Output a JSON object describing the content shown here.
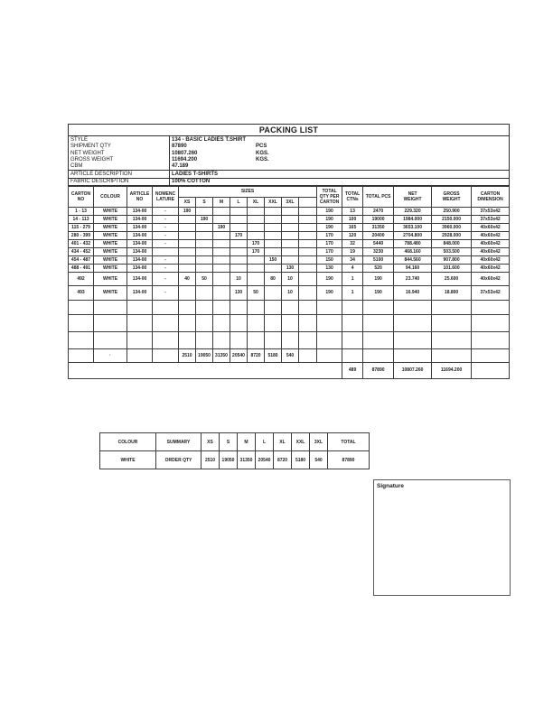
{
  "document": {
    "title": "PACKING LIST",
    "info_rows": [
      {
        "label": "STYLE",
        "value": "134 - BASIC LADIES T.SHIRT",
        "unit": ""
      },
      {
        "label": "SHIPMENT QTY",
        "value": "87890",
        "unit": "PCS"
      },
      {
        "label": "NET WEIGHT",
        "value": "10807.260",
        "unit": "KGS."
      },
      {
        "label": "GROSS WEIGHT",
        "value": "11694.200",
        "unit": "KGS."
      },
      {
        "label": "CBM",
        "value": "47.189",
        "unit": ""
      },
      {
        "label": "ARTICLE DESCRIPTION",
        "value": "LADIES T-SHIRTS",
        "unit": ""
      },
      {
        "label": "FABRIC DESCRIPTION",
        "value": "100% COTTON",
        "unit": ""
      }
    ]
  },
  "main_table": {
    "headers": {
      "carton_no": "CARTON\nNO",
      "colour": "COLOUR",
      "article_no": "ARTICLE\nNO",
      "nomenclature": "NOMENC\nLATURE",
      "sizes": "SIZES",
      "size_cols": [
        "XS",
        "S",
        "M",
        "L",
        "XL",
        "XXL",
        "3XL",
        ""
      ],
      "total_qty_per_carton": "TOTAL\nQTY PER\nCARTON",
      "total_ctns": "TOTAL\nCTNs",
      "total_pcs": "TOTAL PCS",
      "net_weight": "NET\nWEIGHT",
      "gross_weight": "GROSS\nWEIGHT",
      "carton_dimension": "CARTON\nDIMENSION"
    },
    "rows": [
      {
        "h": 9,
        "cells": [
          "1 - 13",
          "WHITE",
          "134-00",
          "-",
          "190",
          "",
          "",
          "",
          "",
          "",
          "",
          "",
          "190",
          "13",
          "2470",
          "229.320",
          "250.900",
          "37x53x42"
        ]
      },
      {
        "h": 9,
        "cells": [
          "14 - 113",
          "WHITE",
          "134-00",
          "-",
          "",
          "190",
          "",
          "",
          "",
          "",
          "",
          "",
          "190",
          "100",
          "19000",
          "1984.000",
          "2150.000",
          "37x53x42"
        ]
      },
      {
        "h": 9,
        "cells": [
          "115 - 279",
          "WHITE",
          "134-00",
          "-",
          "",
          "",
          "190",
          "",
          "",
          "",
          "",
          "",
          "190",
          "165",
          "31350",
          "3653.100",
          "3960.000",
          "40x60x42"
        ]
      },
      {
        "h": 9,
        "cells": [
          "280 - 399",
          "WHITE",
          "134-00",
          "-",
          "",
          "",
          "",
          "170",
          "",
          "",
          "",
          "",
          "170",
          "120",
          "20400",
          "2704.800",
          "2928.000",
          "40x60x42"
        ]
      },
      {
        "h": 9,
        "cells": [
          "401 - 432",
          "WHITE",
          "134-00",
          "-",
          "",
          "",
          "",
          "",
          "170",
          "",
          "",
          "",
          "170",
          "32",
          "5440",
          "788.480",
          "848.000",
          "40x60x42"
        ]
      },
      {
        "h": 9,
        "cells": [
          "434 - 452",
          "WHITE",
          "134-00",
          "",
          "",
          "",
          "",
          "",
          "170",
          "",
          "",
          "",
          "170",
          "19",
          "3230",
          "468.160",
          "503.500",
          "40x60x42"
        ]
      },
      {
        "h": 9,
        "cells": [
          "454 - 487",
          "WHITE",
          "134-00",
          "-",
          "",
          "",
          "",
          "",
          "",
          "150",
          "",
          "",
          "150",
          "34",
          "5100",
          "844.560",
          "907.800",
          "40x60x42"
        ]
      },
      {
        "h": 9,
        "cells": [
          "488 - 491",
          "WHITE",
          "134-00",
          "-",
          "",
          "",
          "",
          "",
          "",
          "",
          "130",
          "",
          "130",
          "4",
          "520",
          "94.160",
          "101.600",
          "40x60x42"
        ]
      },
      {
        "h": 15,
        "cells": [
          "492",
          "WHITE",
          "134-00",
          "-",
          "40",
          "50",
          "",
          "10",
          "",
          "80",
          "10",
          "",
          "190",
          "1",
          "190",
          "23.740",
          "25.600",
          "40x60x42"
        ]
      },
      {
        "h": 16,
        "cells": [
          "493",
          "WHITE",
          "134-00",
          "-",
          "",
          "",
          "",
          "130",
          "50",
          "",
          "10",
          "",
          "190",
          "1",
          "190",
          "16.940",
          "18.800",
          "37x53x42"
        ]
      },
      {
        "h": 16,
        "cells": [
          "",
          "",
          "",
          "",
          "",
          "",
          "",
          "",
          "",
          "",
          "",
          "",
          "",
          "",
          "",
          "",
          "",
          ""
        ]
      },
      {
        "h": 19,
        "cells": [
          "",
          "",
          "",
          "",
          "",
          "",
          "",
          "",
          "",
          "",
          "",
          "",
          "",
          "",
          "",
          "",
          "",
          ""
        ]
      },
      {
        "h": 19,
        "cells": [
          "",
          "",
          "",
          "",
          "",
          "",
          "",
          "",
          "",
          "",
          "",
          "",
          "",
          "",
          "",
          "",
          "",
          ""
        ]
      },
      {
        "h": 15,
        "cells": [
          "",
          "·",
          "",
          "",
          "2510",
          "19050",
          "31350",
          "20540",
          "8720",
          "5180",
          "540",
          "",
          "",
          "",
          "",
          "",
          "",
          ""
        ]
      }
    ],
    "totals": {
      "ctns": "489",
      "pcs": "87890",
      "net_weight": "10807.260",
      "gross_weight": "11694.200",
      "dimension": ""
    }
  },
  "summary_table": {
    "rows": [
      [
        "COLOUR",
        "SUMMARY",
        "XS",
        "S",
        "M",
        "L",
        "XL",
        "XXL",
        "3XL",
        "TOTAL"
      ],
      [
        "WHITE",
        "ORDER QTY",
        "2510",
        "19050",
        "31350",
        "20540",
        "8720",
        "5180",
        "540",
        "87890"
      ]
    ]
  },
  "signature": {
    "label": "Signature"
  }
}
